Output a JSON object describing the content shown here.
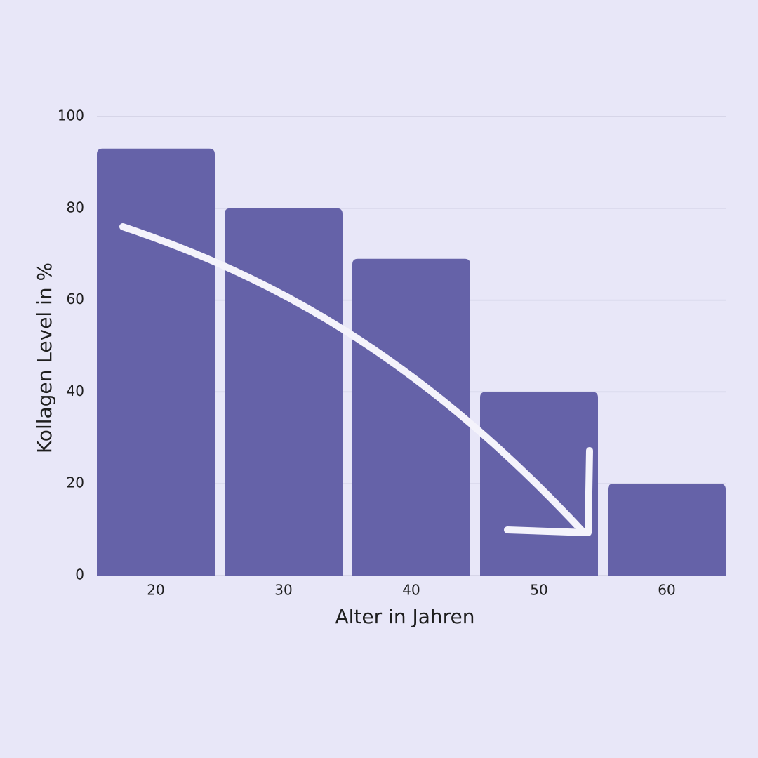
{
  "chart_data": {
    "type": "bar",
    "x_label": "Alter in Jahren",
    "y_label": "Kollagen Level in %",
    "categories": [
      "20",
      "30",
      "40",
      "50",
      "60"
    ],
    "values": [
      93,
      80,
      69,
      40,
      20
    ],
    "color": "#6562a8",
    "ylim": [
      0,
      100
    ],
    "yticks": [
      0,
      20,
      40,
      60,
      80,
      100
    ],
    "grid": true
  }
}
